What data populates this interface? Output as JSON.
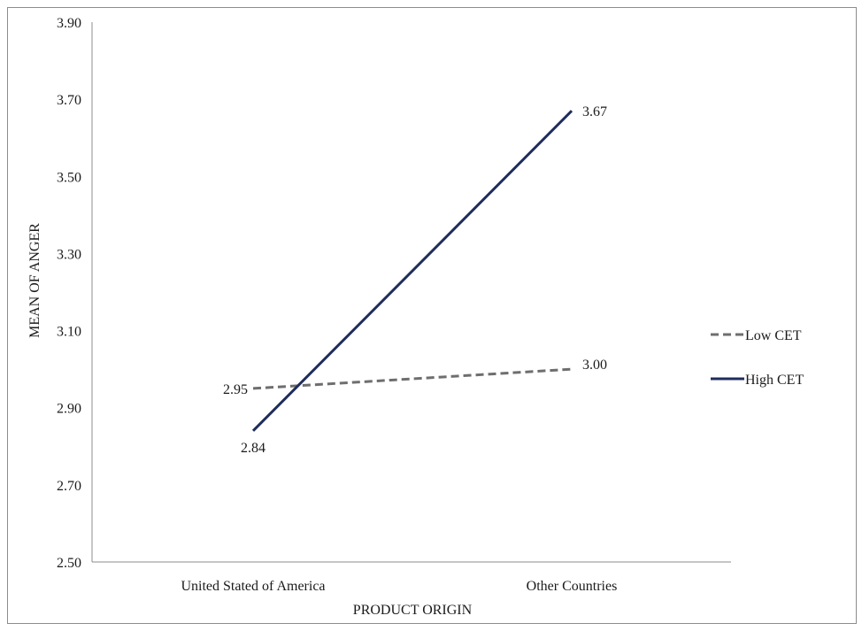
{
  "chart_data": {
    "type": "line",
    "xlabel": "PRODUCT ORIGIN",
    "ylabel": "MEAN OF ANGER",
    "categories": [
      "United Stated of America",
      "Other Countries"
    ],
    "ylim": [
      2.5,
      3.9
    ],
    "yticks": [
      "2.50",
      "2.70",
      "2.90",
      "3.10",
      "3.30",
      "3.50",
      "3.70",
      "3.90"
    ],
    "grid": false,
    "legend_position": "right",
    "series": [
      {
        "name": "Low CET",
        "values": [
          2.95,
          3.0
        ],
        "labels": [
          "2.95",
          "3.00"
        ],
        "color": "#6e6e6e",
        "style": "dashed"
      },
      {
        "name": "High CET",
        "values": [
          2.84,
          3.67
        ],
        "labels": [
          "2.84",
          "3.67"
        ],
        "color": "#1f2d5c",
        "style": "solid"
      }
    ]
  }
}
